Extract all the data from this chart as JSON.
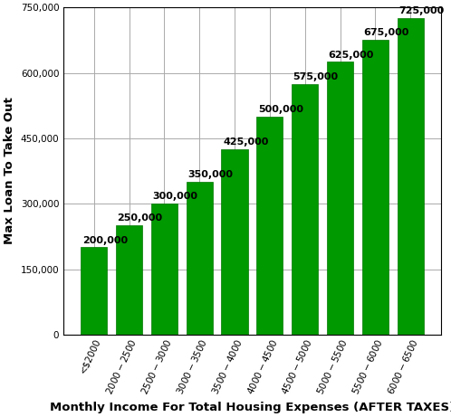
{
  "categories": [
    "<$2000",
    "$2000-$2500",
    "$2500-$3000",
    "$3000-$3500",
    "$3500-$4000",
    "$4000-$4500",
    "$4500-$5000",
    "$5000-$5500",
    "$5500-$6000",
    "$6000-$6500"
  ],
  "values": [
    200000,
    250000,
    300000,
    350000,
    425000,
    500000,
    575000,
    625000,
    675000,
    725000
  ],
  "bar_color": "#009900",
  "bar_edge_color": "#007700",
  "xlabel": "Monthly Income For Total Housing Expenses (AFTER TAXES)",
  "ylabel": "Max Loan To Take Out",
  "ylim": [
    0,
    750000
  ],
  "yticks": [
    0,
    150000,
    300000,
    450000,
    600000,
    750000
  ],
  "background_color": "#ffffff",
  "grid_color": "#aaaaaa",
  "label_fontsize": 8.0,
  "axis_label_fontsize": 9.5,
  "tick_label_fontsize": 7.5
}
